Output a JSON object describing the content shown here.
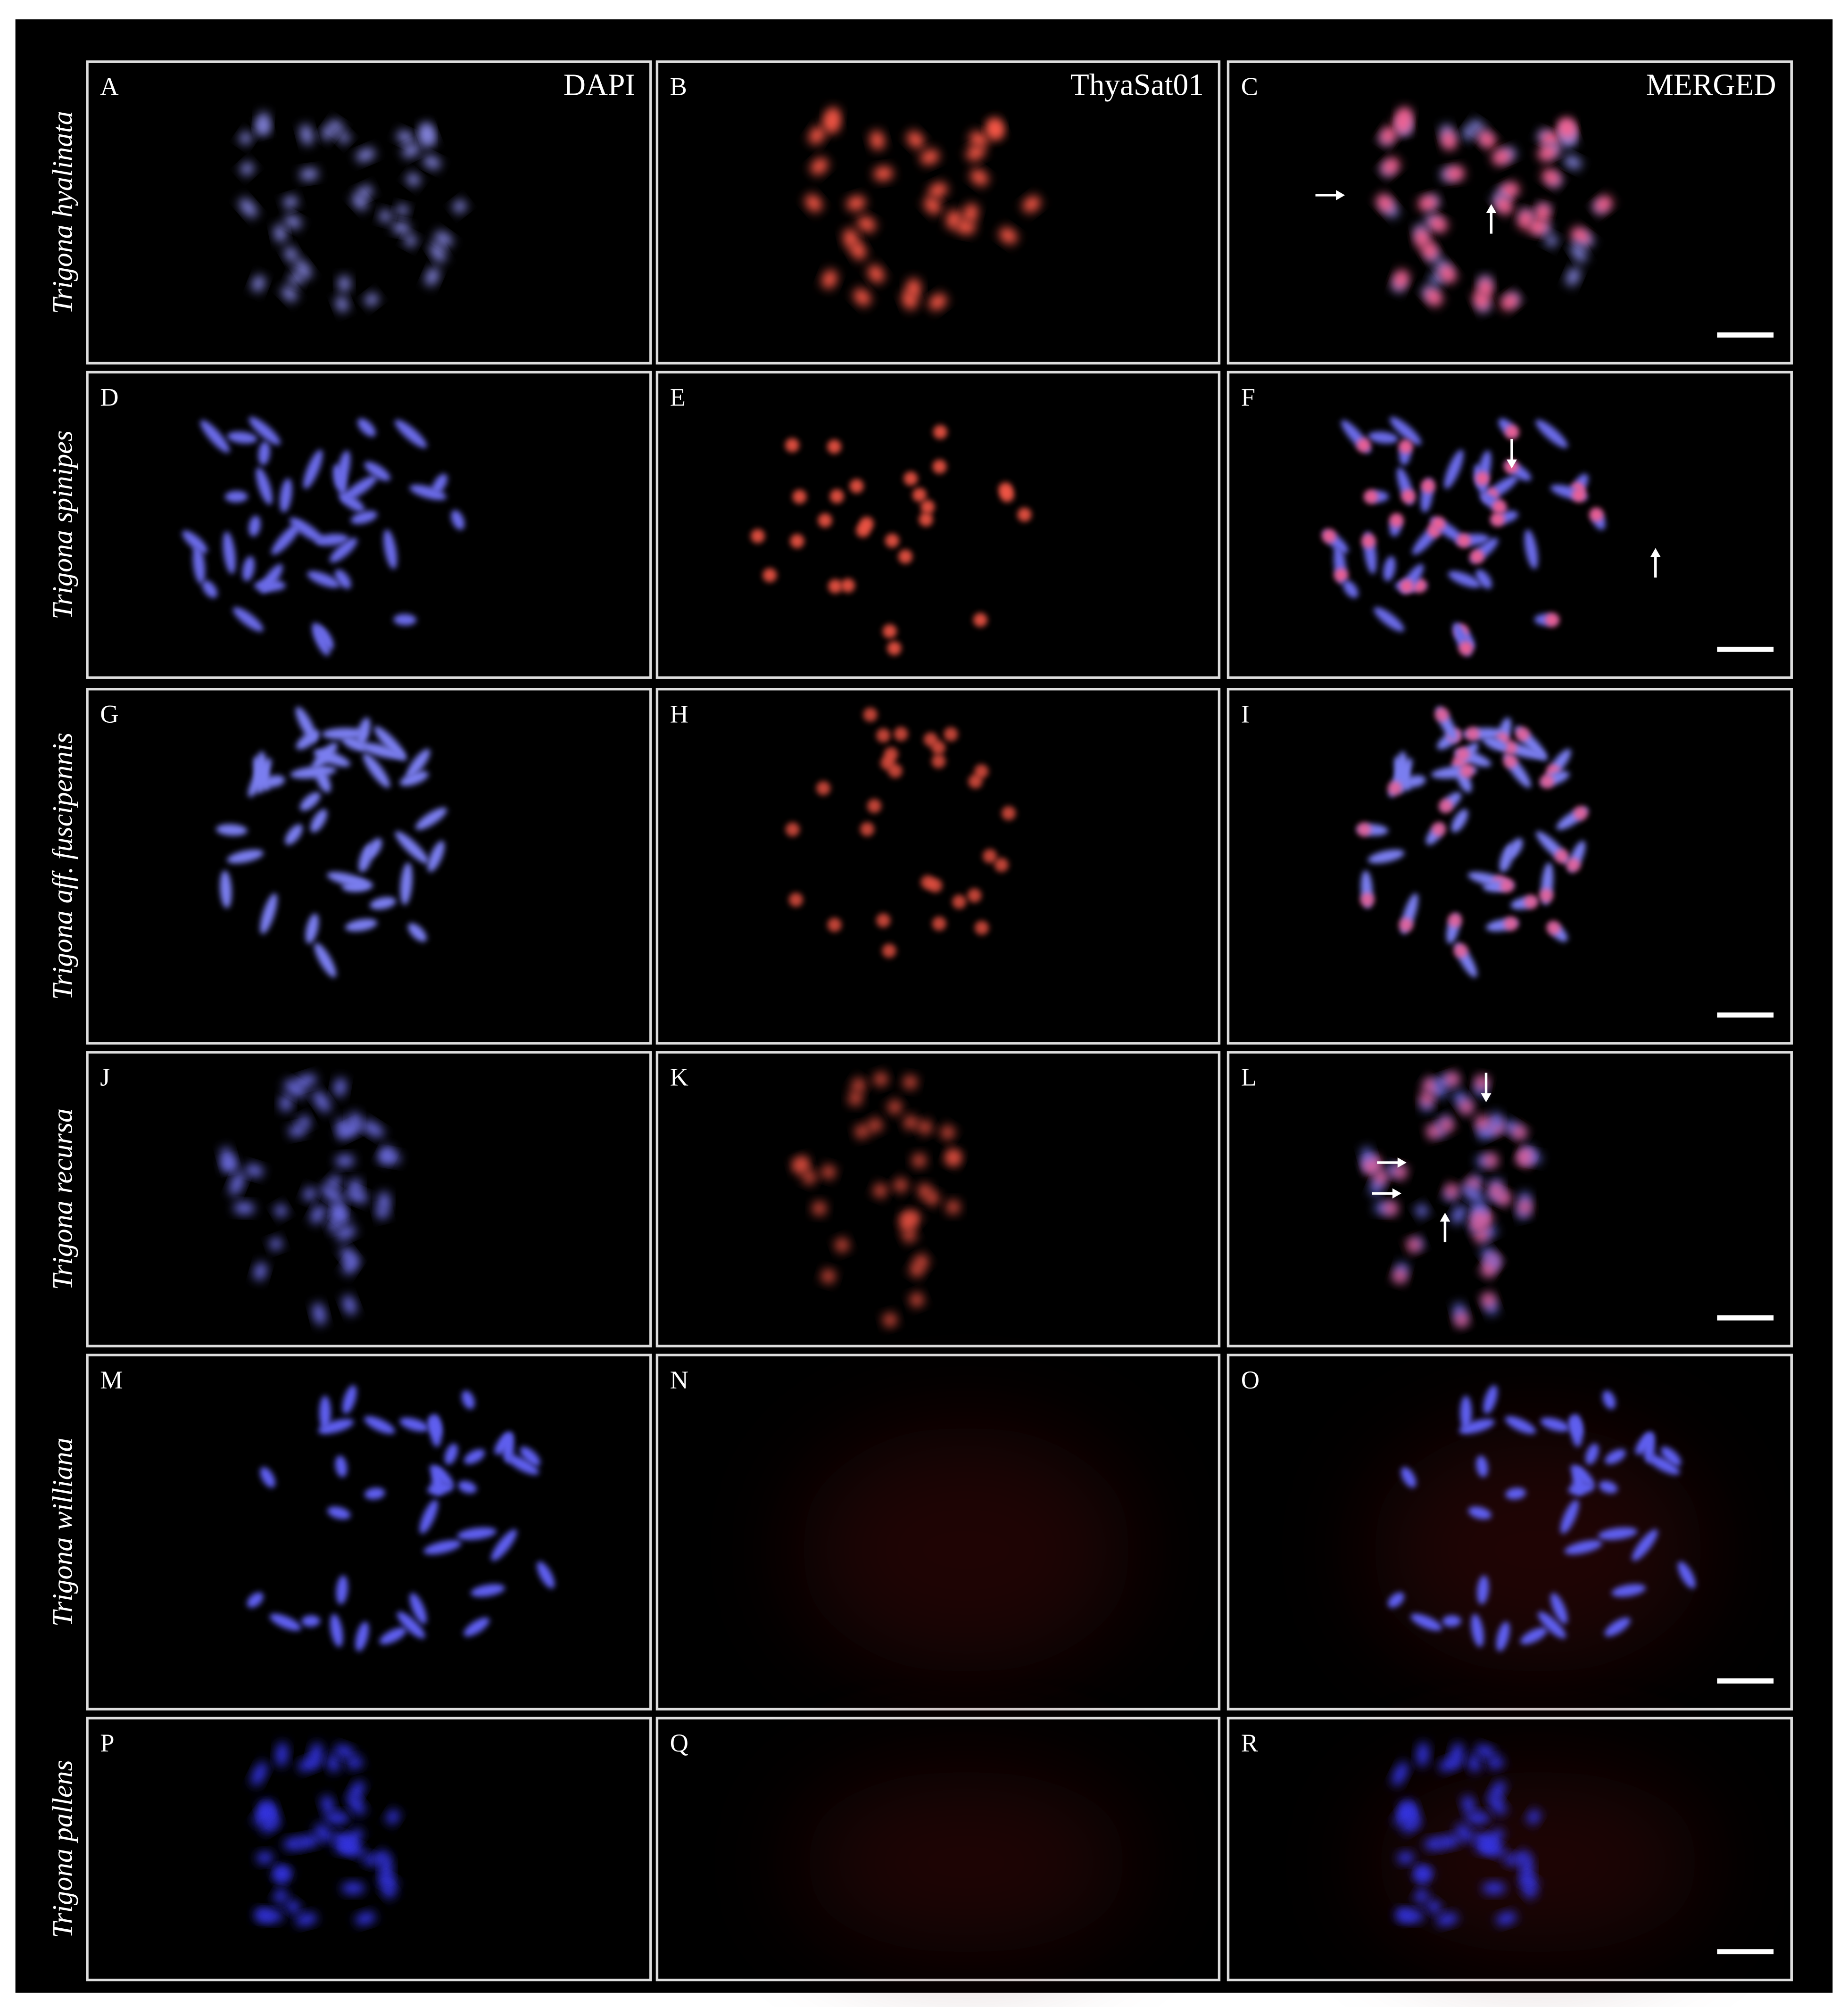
{
  "column_headers": [
    "DAPI",
    "ThyaSat01",
    "MERGED"
  ],
  "rows": [
    {
      "species": "Trigona hyalinata",
      "panels": [
        "A",
        "B",
        "C"
      ]
    },
    {
      "species": "Trigona spinipes",
      "panels": [
        "D",
        "E",
        "F"
      ]
    },
    {
      "species": "Trigona aff. fuscipennis",
      "panels": [
        "G",
        "H",
        "I"
      ]
    },
    {
      "species": "Trigona recursa",
      "panels": [
        "J",
        "K",
        "L"
      ]
    },
    {
      "species": "Trigona williana",
      "panels": [
        "M",
        "N",
        "O"
      ]
    },
    {
      "species": "Trigona pallens",
      "panels": [
        "P",
        "Q",
        "R"
      ]
    }
  ]
}
